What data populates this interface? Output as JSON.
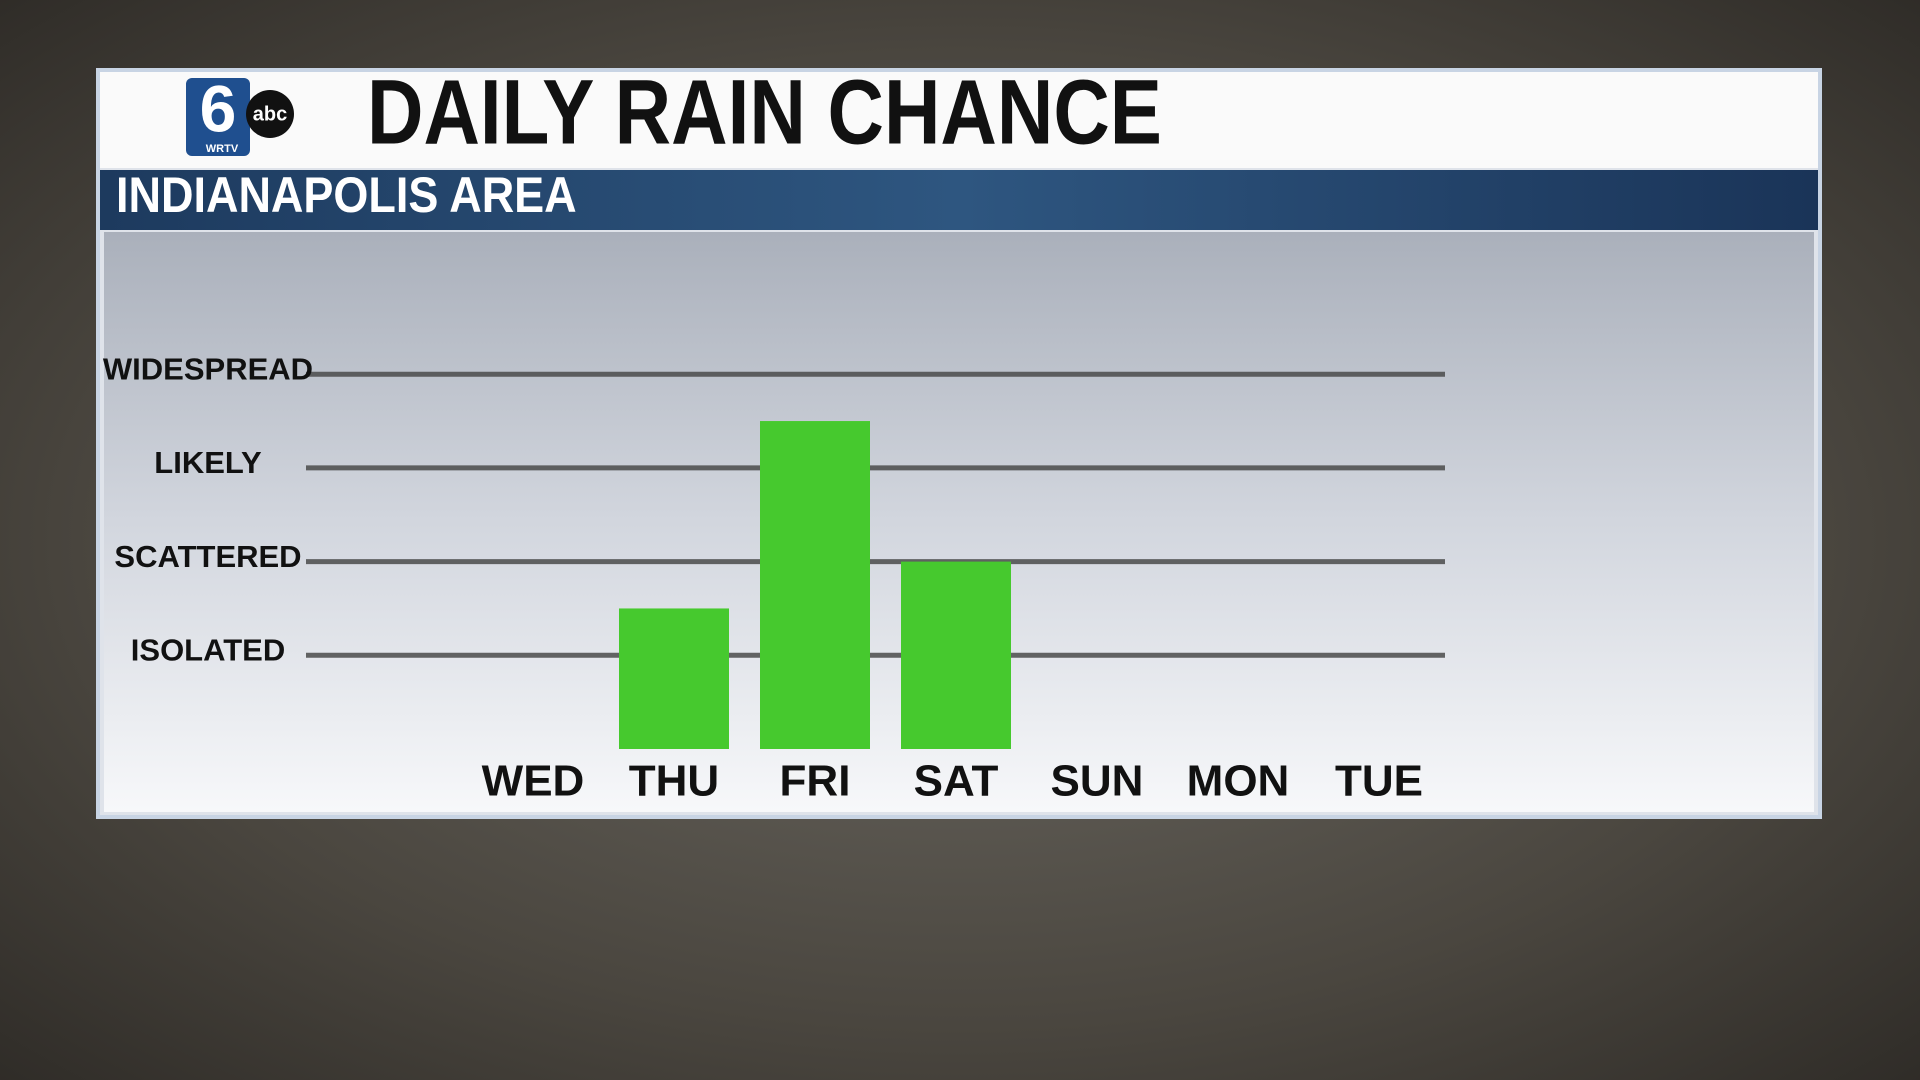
{
  "branding": {
    "number": "6",
    "network": "abc",
    "call_sign": "WRTV"
  },
  "chart_data": {
    "type": "bar",
    "title": "DAILY RAIN CHANCE",
    "subtitle": "INDIANAPOLIS AREA",
    "categories": [
      "WED",
      "THU",
      "FRI",
      "SAT",
      "SUN",
      "MON",
      "TUE"
    ],
    "values": [
      0,
      1.5,
      3.5,
      2,
      0,
      0,
      0
    ],
    "color": "#46c92e",
    "ylim": [
      0,
      4.6
    ],
    "yticks": [
      {
        "value": 1,
        "label": "ISOLATED"
      },
      {
        "value": 2,
        "label": "SCATTERED"
      },
      {
        "value": 3,
        "label": "LIKELY"
      },
      {
        "value": 4,
        "label": "WIDESPREAD"
      }
    ],
    "grid": true
  }
}
